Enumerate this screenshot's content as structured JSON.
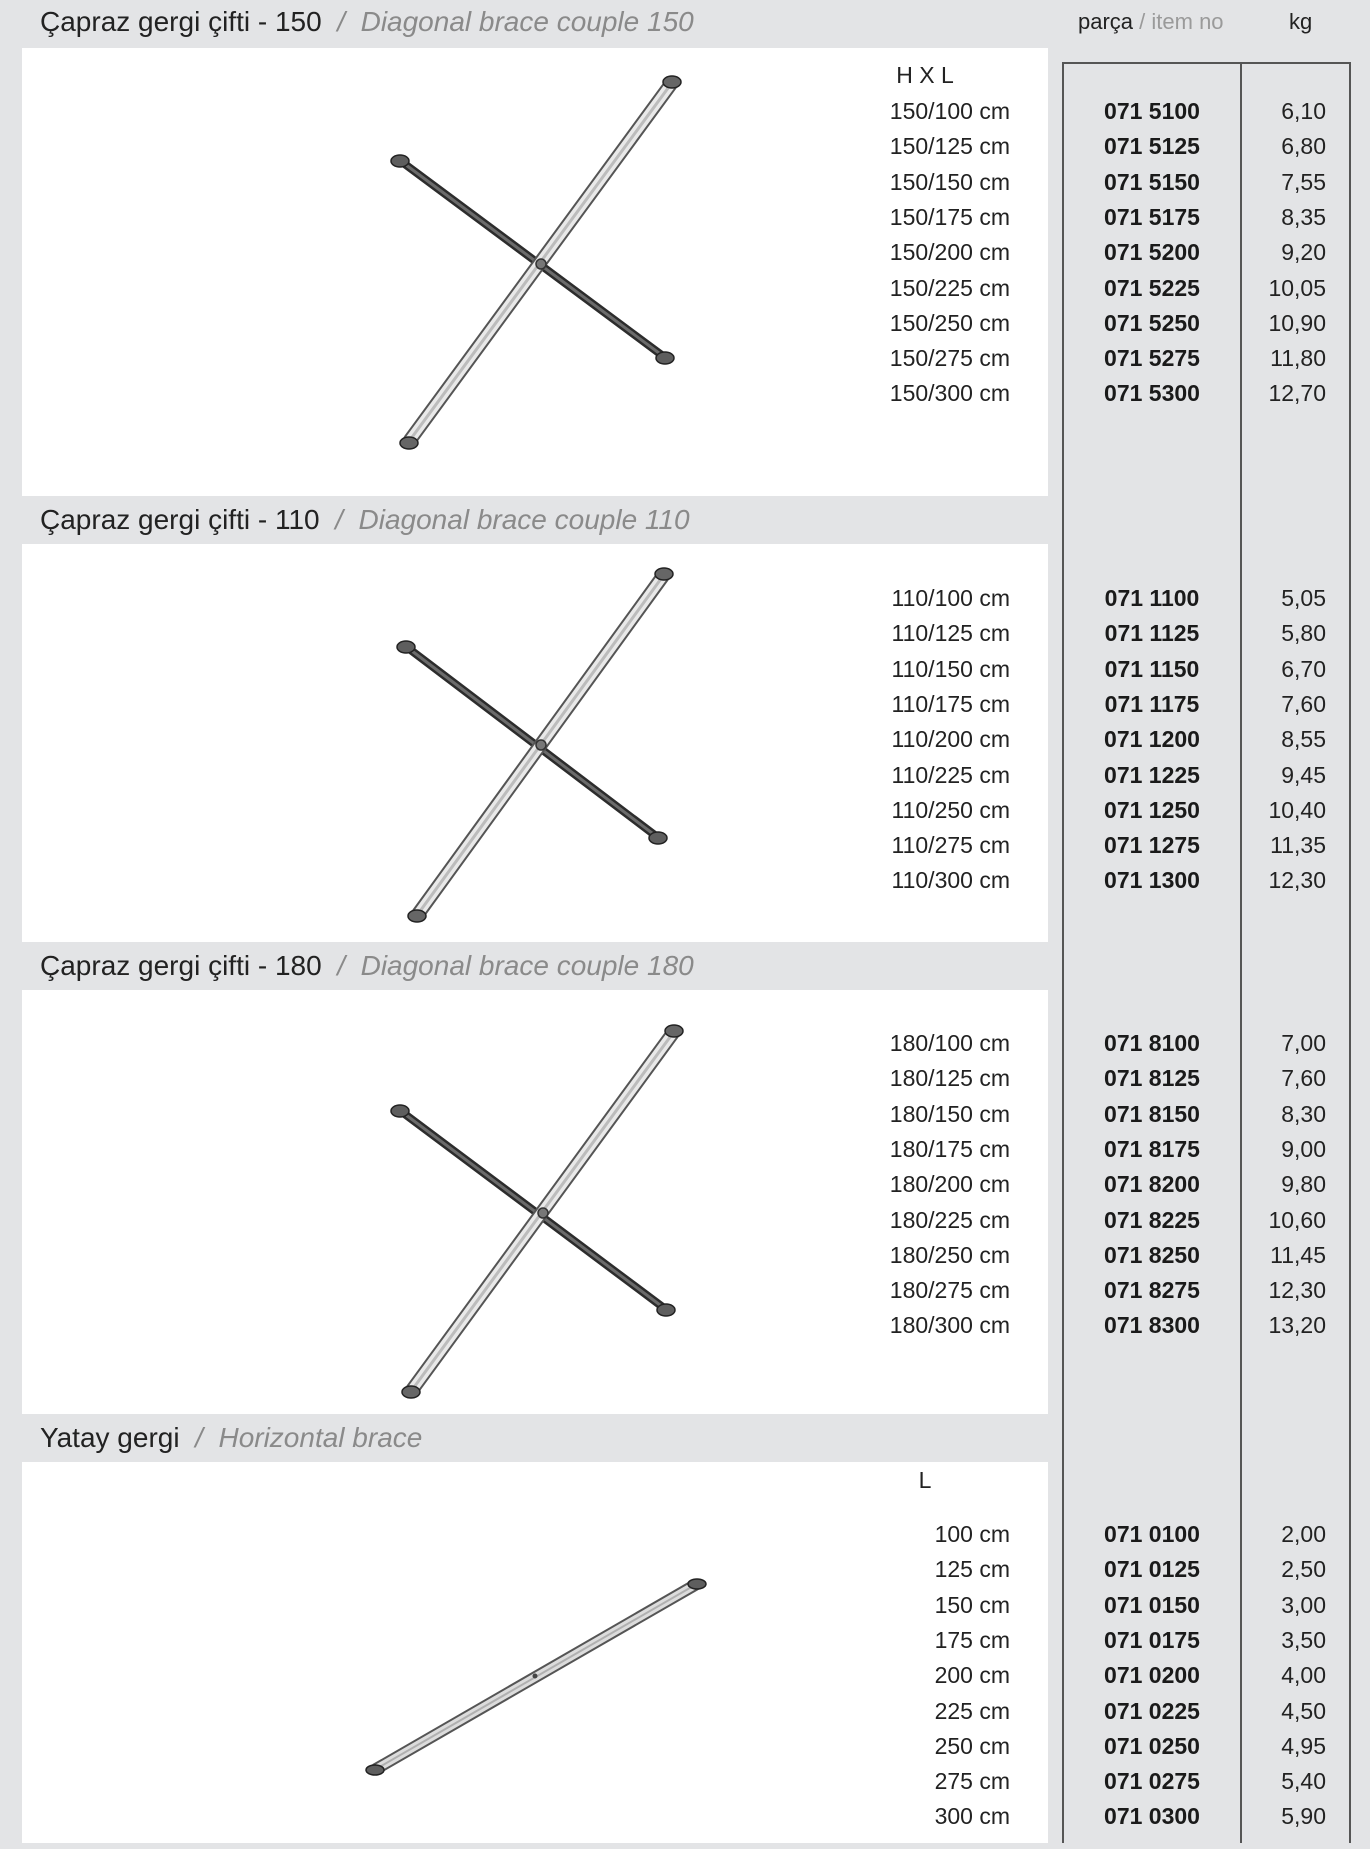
{
  "columns": {
    "item_label": "parça",
    "item_sep": " / ",
    "item_label_en": "item no",
    "weight_label": "kg"
  },
  "sections": [
    {
      "title_tr": "Çapraz gergi çifti - 150",
      "separator": "/",
      "title_en": "Diagonal brace couple  150",
      "dim_header": "H X L",
      "rows": [
        {
          "dim": "150/100 cm",
          "item": "071 5100",
          "kg": "6,10"
        },
        {
          "dim": "150/125 cm",
          "item": "071 5125",
          "kg": "6,80"
        },
        {
          "dim": "150/150 cm",
          "item": "071 5150",
          "kg": "7,55"
        },
        {
          "dim": "150/175 cm",
          "item": "071 5175",
          "kg": "8,35"
        },
        {
          "dim": "150/200 cm",
          "item": "071 5200",
          "kg": "9,20"
        },
        {
          "dim": "150/225 cm",
          "item": "071 5225",
          "kg": "10,05"
        },
        {
          "dim": "150/250 cm",
          "item": "071 5250",
          "kg": "10,90"
        },
        {
          "dim": "150/275 cm",
          "item": "071 5275",
          "kg": "11,80"
        },
        {
          "dim": "150/300 cm",
          "item": "071 5300",
          "kg": "12,70"
        }
      ]
    },
    {
      "title_tr": "Çapraz gergi çifti - 110",
      "separator": "/",
      "title_en": "Diagonal brace couple  110",
      "dim_header": "",
      "rows": [
        {
          "dim": "110/100 cm",
          "item": "071 1100",
          "kg": "5,05"
        },
        {
          "dim": "110/125 cm",
          "item": "071 1125",
          "kg": "5,80"
        },
        {
          "dim": "110/150 cm",
          "item": "071 1150",
          "kg": "6,70"
        },
        {
          "dim": "110/175 cm",
          "item": "071 1175",
          "kg": "7,60"
        },
        {
          "dim": "110/200 cm",
          "item": "071 1200",
          "kg": "8,55"
        },
        {
          "dim": "110/225 cm",
          "item": "071 1225",
          "kg": "9,45"
        },
        {
          "dim": "110/250 cm",
          "item": "071 1250",
          "kg": "10,40"
        },
        {
          "dim": "110/275 cm",
          "item": "071 1275",
          "kg": "11,35"
        },
        {
          "dim": "110/300 cm",
          "item": "071 1300",
          "kg": "12,30"
        }
      ]
    },
    {
      "title_tr": "Çapraz gergi çifti - 180",
      "separator": "/",
      "title_en": "Diagonal brace couple  180",
      "dim_header": "",
      "rows": [
        {
          "dim": "180/100 cm",
          "item": "071 8100",
          "kg": "7,00"
        },
        {
          "dim": "180/125 cm",
          "item": "071 8125",
          "kg": "7,60"
        },
        {
          "dim": "180/150 cm",
          "item": "071 8150",
          "kg": "8,30"
        },
        {
          "dim": "180/175 cm",
          "item": "071 8175",
          "kg": "9,00"
        },
        {
          "dim": "180/200 cm",
          "item": "071 8200",
          "kg": "9,80"
        },
        {
          "dim": "180/225 cm",
          "item": "071 8225",
          "kg": "10,60"
        },
        {
          "dim": "180/250 cm",
          "item": "071 8250",
          "kg": "11,45"
        },
        {
          "dim": "180/275 cm",
          "item": "071 8275",
          "kg": "12,30"
        },
        {
          "dim": "180/300 cm",
          "item": "071 8300",
          "kg": "13,20"
        }
      ]
    },
    {
      "title_tr": "Yatay gergi",
      "separator": "/",
      "title_en": "Horizontal brace",
      "dim_header": "L",
      "rows": [
        {
          "dim": "100 cm",
          "item": "071 0100",
          "kg": "2,00"
        },
        {
          "dim": "125 cm",
          "item": "071 0125",
          "kg": "2,50"
        },
        {
          "dim": "150 cm",
          "item": "071 0150",
          "kg": "3,00"
        },
        {
          "dim": "175 cm",
          "item": "071 0175",
          "kg": "3,50"
        },
        {
          "dim": "200 cm",
          "item": "071 0200",
          "kg": "4,00"
        },
        {
          "dim": "225 cm",
          "item": "071 0225",
          "kg": "4,50"
        },
        {
          "dim": "250 cm",
          "item": "071 0250",
          "kg": "4,95"
        },
        {
          "dim": "275 cm",
          "item": "071 0275",
          "kg": "5,40"
        },
        {
          "dim": "300 cm",
          "item": "071 0300",
          "kg": "5,90"
        }
      ]
    }
  ]
}
